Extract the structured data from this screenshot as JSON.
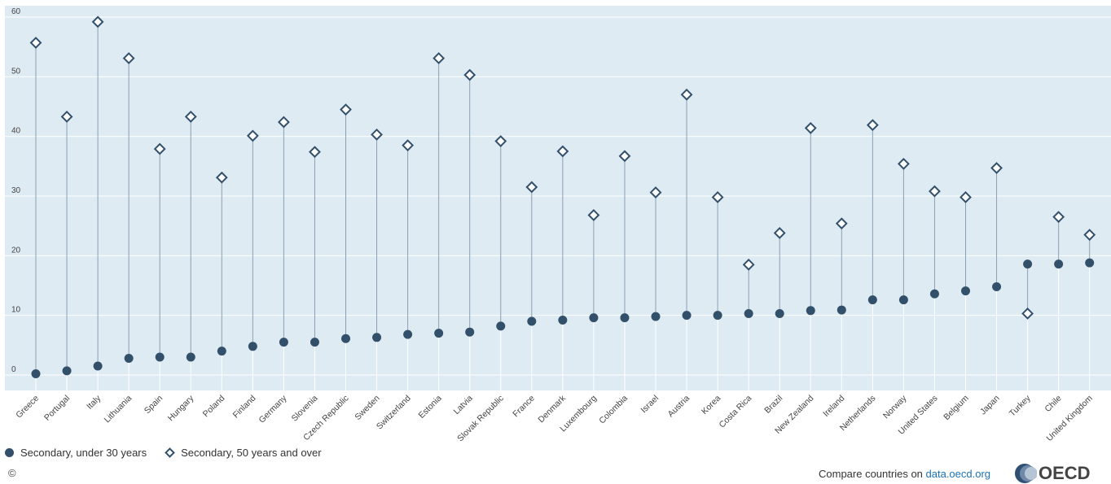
{
  "chart_data": {
    "type": "scatter",
    "categories": [
      "Greece",
      "Portugal",
      "Italy",
      "Lithuania",
      "Spain",
      "Hungary",
      "Poland",
      "Finland",
      "Germany",
      "Slovenia",
      "Czech Republic",
      "Sweden",
      "Switzerland",
      "Estonia",
      "Latvia",
      "Slovak Republic",
      "France",
      "Denmark",
      "Luxembourg",
      "Colombia",
      "Israel",
      "Austria",
      "Korea",
      "Costa Rica",
      "Brazil",
      "New Zealand",
      "Ireland",
      "Netherlands",
      "Norway",
      "United States",
      "Belgium",
      "Japan",
      "Turkey",
      "Chile",
      "United Kingdom"
    ],
    "series": [
      {
        "name": "Secondary, under 30 years",
        "marker": "circle",
        "values": [
          0.2,
          0.7,
          1.5,
          2.8,
          3.0,
          3.0,
          4.0,
          4.8,
          5.5,
          5.5,
          6.1,
          6.3,
          6.8,
          7.0,
          7.2,
          8.2,
          9.0,
          9.2,
          9.6,
          9.6,
          9.8,
          10.0,
          10.0,
          10.3,
          10.3,
          10.8,
          10.9,
          12.6,
          12.6,
          13.6,
          14.1,
          14.8,
          18.6,
          18.6,
          18.8
        ]
      },
      {
        "name": "Secondary, 50 years and over",
        "marker": "diamond",
        "values": [
          55.7,
          43.3,
          59.2,
          53.1,
          37.9,
          43.3,
          33.1,
          40.1,
          42.4,
          37.4,
          44.5,
          40.3,
          38.5,
          53.1,
          50.3,
          39.2,
          31.5,
          37.5,
          26.8,
          36.7,
          30.6,
          47.0,
          29.8,
          18.5,
          23.8,
          41.4,
          25.4,
          41.9,
          35.4,
          30.8,
          29.8,
          34.7,
          10.3,
          26.5,
          23.5
        ]
      }
    ],
    "yticks": [
      0,
      10,
      20,
      30,
      40,
      50,
      60
    ],
    "ylim": [
      -2.6,
      61
    ],
    "grid": true,
    "legend": "bottom-left",
    "colors": {
      "marker": "#33506b",
      "background": "#dfebf3",
      "stem": "#8aa0b2"
    }
  },
  "legend": {
    "items": [
      {
        "label": "Secondary, under 30 years"
      },
      {
        "label": "Secondary, 50 years and over"
      }
    ]
  },
  "footer": {
    "copyright": "©",
    "compare_prefix": "Compare countries on ",
    "compare_link": "data.oecd.org",
    "logo_text": "OECD"
  }
}
